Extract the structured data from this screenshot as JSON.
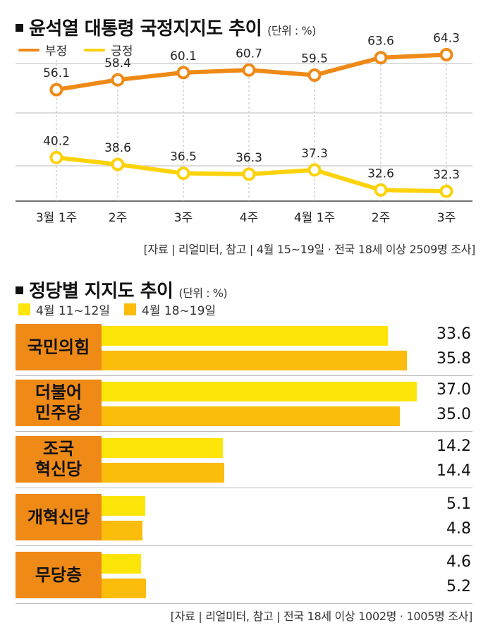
{
  "chart1": {
    "title": "윤석열 대통령 국정지지도 추이",
    "unit": "(단위 : %)",
    "source": "[자료 | 리얼미터, 참고 | 4월 15~19일 · 전국 18세 이상 2509명 조사]",
    "colors": {
      "negative": "#ef8a17",
      "positive": "#fcd20a"
    },
    "chart_data": {
      "type": "line",
      "categories": [
        "3월 1주",
        "2주",
        "3주",
        "4주",
        "4월 1주",
        "2주",
        "3주"
      ],
      "series": [
        {
          "name": "부정",
          "values": [
            56.1,
            58.4,
            60.1,
            60.7,
            59.5,
            63.6,
            64.3
          ]
        },
        {
          "name": "긍정",
          "values": [
            40.2,
            38.6,
            36.5,
            36.3,
            37.3,
            32.6,
            32.3
          ]
        }
      ],
      "title": "윤석열 대통령 국정지지도 추이",
      "legend": "top-left",
      "grid": true
    }
  },
  "chart2": {
    "title": "정당별 지지도 추이",
    "unit": "(단위 : %)",
    "source": "[자료 | 리얼미터, 참고 | 전국 18세 이상 1002명 · 1005명 조사]",
    "colors": {
      "bar1": "#fde50a",
      "bar2": "#fbbc0b",
      "label_bg": "#ef8a17"
    },
    "chart_data": {
      "type": "bar",
      "categories": [
        "국민의힘",
        "더불어\n민주당",
        "조국\n혁신당",
        "개혁신당",
        "무당층"
      ],
      "series": [
        {
          "name": "4월 11~12일",
          "values": [
            33.6,
            37.0,
            14.2,
            5.1,
            4.6
          ]
        },
        {
          "name": "4월 18~19일",
          "values": [
            35.8,
            35.0,
            14.4,
            4.8,
            5.2
          ]
        }
      ],
      "value_labels": [
        [
          "33.6",
          "35.8"
        ],
        [
          "37.0",
          "35.0"
        ],
        [
          "14.2",
          "14.4"
        ],
        [
          "5.1",
          "4.8"
        ],
        [
          "4.6",
          "5.2"
        ]
      ],
      "title": "정당별 지지도 추이",
      "orientation": "horizontal",
      "legend": "top-left"
    }
  }
}
